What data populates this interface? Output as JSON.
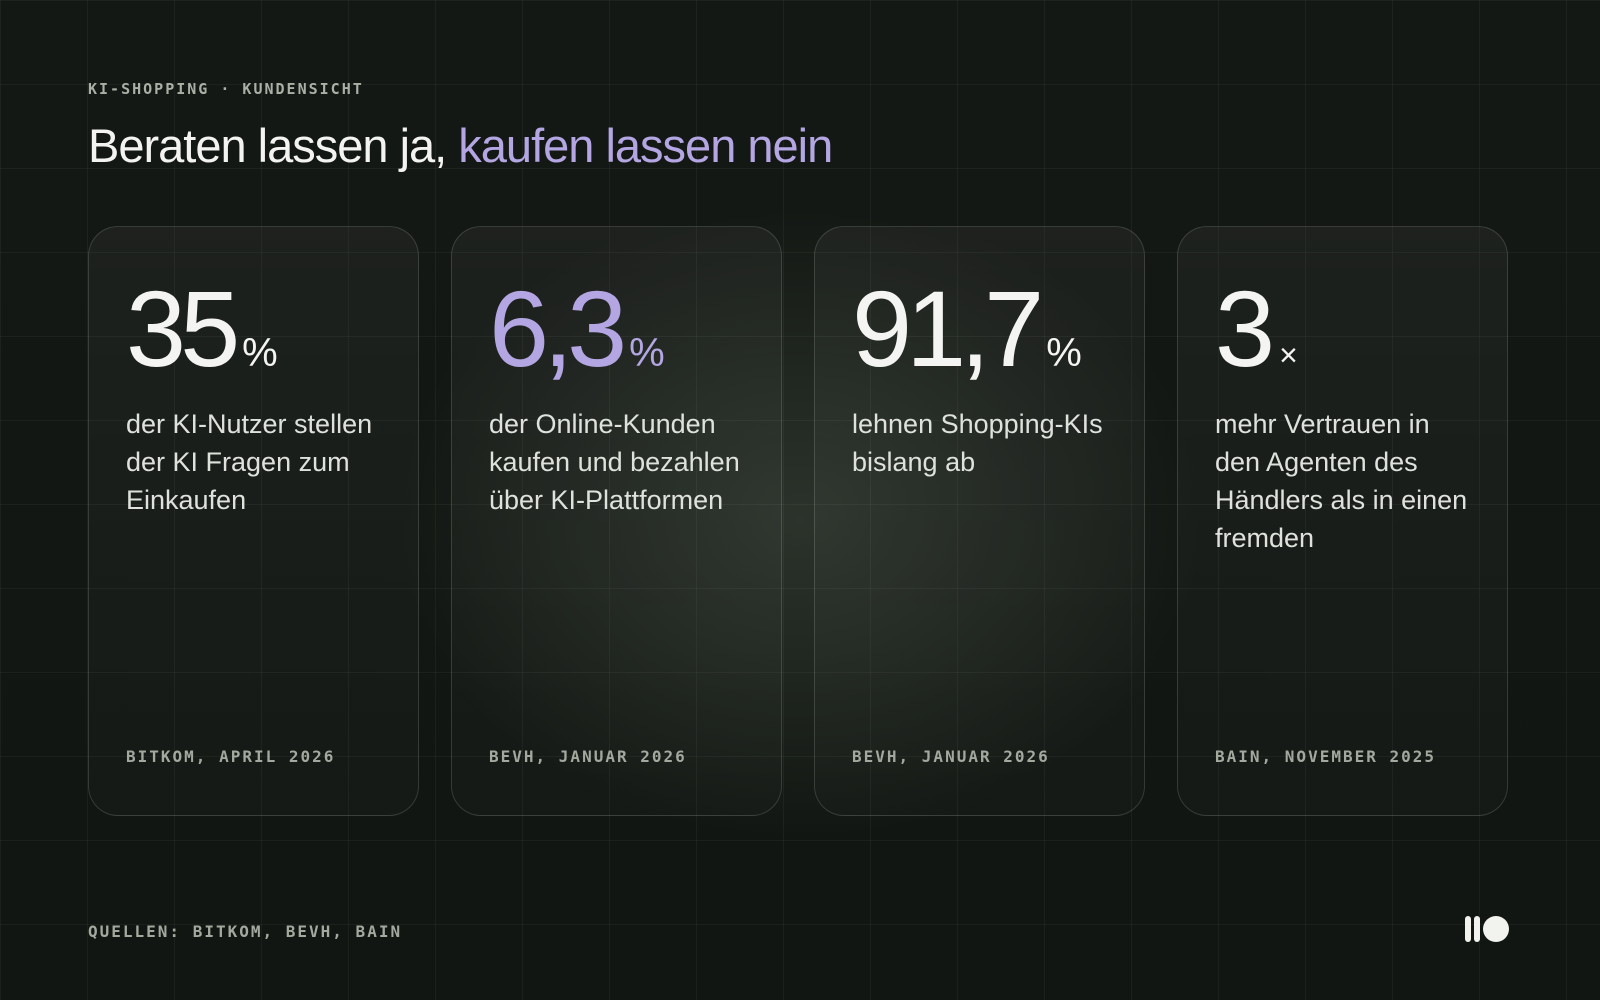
{
  "kicker": "KI-SHOPPING · KUNDENSICHT",
  "title": {
    "part1": "Beraten lassen ja,",
    "part2": "kaufen lassen nein"
  },
  "colors": {
    "background": "#141814",
    "accent": "#b3a6e2",
    "text": "#f3f4f1",
    "muted": "#a3a99f"
  },
  "cards": [
    {
      "value": "35",
      "unit": "%",
      "description": "der KI-Nutzer stellen der KI Fragen zum Einkaufen",
      "source": "BITKOM, APRIL 2026"
    },
    {
      "value": "6,3",
      "unit": "%",
      "description": "der Online-Kunden kaufen und bezahlen über KI-Plattformen",
      "source": "BEVH, JANUAR 2026",
      "highlight": true
    },
    {
      "value": "91,7",
      "unit": "%",
      "description": "lehnen Shopping-KIs bislang ab",
      "source": "BEVH, JANUAR 2026"
    },
    {
      "value": "3",
      "unit": "×",
      "description": "mehr Vertrauen in den Agenten des Händlers als in einen fremden",
      "source": "BAIN, NOVEMBER 2025"
    }
  ],
  "footer": {
    "sources": "QUELLEN: BITKOM, BEVH, BAIN",
    "logo_icon": "brand-logo-icon"
  }
}
